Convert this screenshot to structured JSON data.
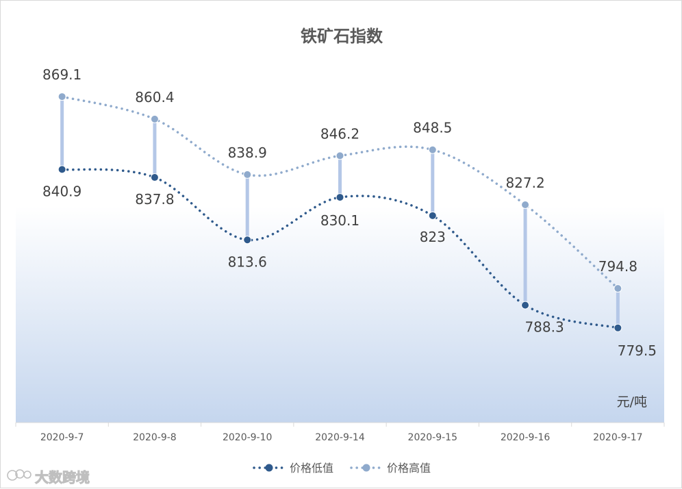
{
  "chart_data": {
    "type": "line",
    "title": "铁矿石指数",
    "unit": "元/吨",
    "categories": [
      "2020-9-7",
      "2020-9-8",
      "2020-9-10",
      "2020-9-14",
      "2020-9-15",
      "2020-9-16",
      "2020-9-17"
    ],
    "series": [
      {
        "name": "价格低值",
        "values": [
          840.9,
          837.8,
          813.6,
          830.1,
          823,
          788.3,
          779.5
        ],
        "color": "#2f5a8c"
      },
      {
        "name": "价格高值",
        "values": [
          869.1,
          860.4,
          838.9,
          846.2,
          848.5,
          827.2,
          794.8
        ],
        "color": "#8faacc"
      }
    ],
    "high_low_line_color": "#b4c7e7",
    "ylim": [
      750,
      880
    ],
    "grid": false,
    "legend_position": "bottom"
  },
  "watermark": {
    "text": "大数跨境"
  }
}
